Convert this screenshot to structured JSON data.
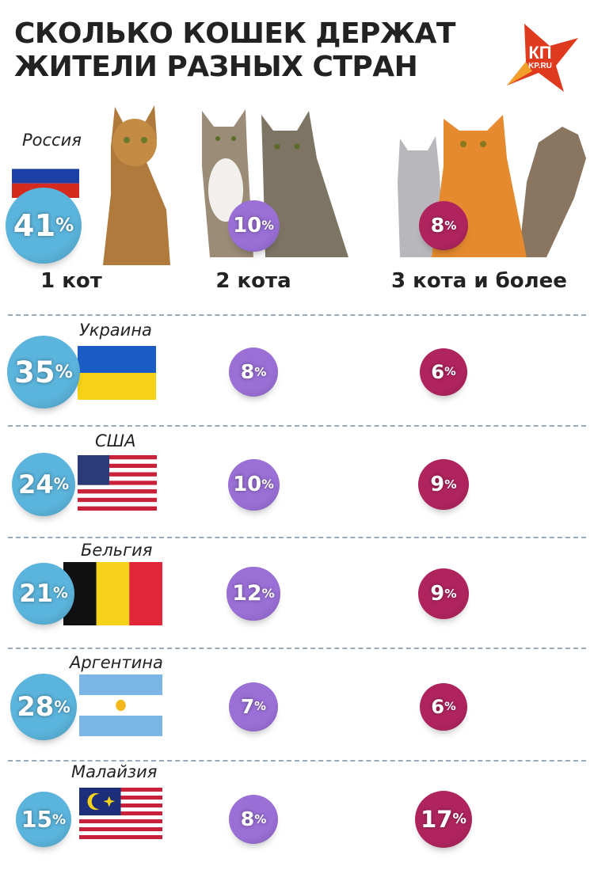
{
  "title_lines": [
    "СКОЛЬКО КОШЕК ДЕРЖАТ",
    "ЖИТЕЛИ РАЗНЫХ СТРАН"
  ],
  "logo": {
    "text_top": "КП",
    "text_bottom": "KP.RU"
  },
  "colors": {
    "one_cat": "#5bb4dc",
    "two_cats": "#9a6fd6",
    "three_cats": "#b0245e"
  },
  "chart_data": {
    "type": "table",
    "categories": [
      "1 кот",
      "2 кота",
      "3 кота и более"
    ],
    "unit": "%",
    "rows": [
      {
        "country": "Россия",
        "flag": "russia",
        "values": [
          41,
          10,
          8
        ]
      },
      {
        "country": "Украина",
        "flag": "ukraine",
        "values": [
          35,
          8,
          6
        ]
      },
      {
        "country": "США",
        "flag": "usa",
        "values": [
          24,
          10,
          9
        ]
      },
      {
        "country": "Бельгия",
        "flag": "belgium",
        "values": [
          21,
          12,
          9
        ]
      },
      {
        "country": "Аргентина",
        "flag": "argentina",
        "values": [
          28,
          7,
          6
        ]
      },
      {
        "country": "Малайзия",
        "flag": "malaysia",
        "values": [
          15,
          8,
          17
        ]
      }
    ]
  }
}
